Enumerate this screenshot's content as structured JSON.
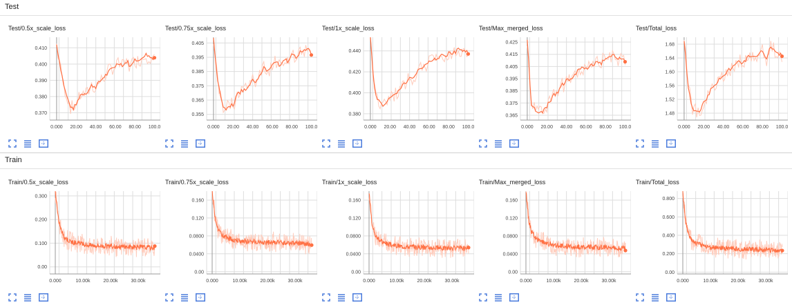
{
  "sections": [
    {
      "name": "Test"
    },
    {
      "name": "Train"
    }
  ],
  "colors": {
    "line": "#ff7043",
    "band": "#ffccbc",
    "grid": "#dddddd",
    "axis": "#999999",
    "icon": "#4a7bdc"
  },
  "icon_names": [
    "fit-to-page-icon",
    "toggle-y-log-icon",
    "fit-domain-icon"
  ],
  "charts": [
    {
      "section": 0,
      "title": "Test/0.5x_scale_loss",
      "chart_data": {
        "type": "line",
        "x": {
          "ticks": [
            "0.000",
            "20.00",
            "40.00",
            "60.00",
            "80.00",
            "100.0"
          ],
          "range": [
            -7,
            106
          ]
        },
        "y": {
          "ticks": [
            "0.370",
            "0.380",
            "0.390",
            "0.400",
            "0.410"
          ],
          "range": [
            0.3655,
            0.4165
          ]
        },
        "series": [
          {
            "x": [
              0,
              4,
              8,
              12,
              16,
              20,
              24,
              28,
              32,
              36,
              40,
              44,
              48,
              52,
              56,
              60,
              64,
              68,
              72,
              76,
              80,
              84,
              88,
              92,
              96,
              100
            ],
            "y": [
              0.412,
              0.398,
              0.385,
              0.377,
              0.372,
              0.375,
              0.381,
              0.382,
              0.383,
              0.387,
              0.386,
              0.389,
              0.392,
              0.394,
              0.397,
              0.399,
              0.401,
              0.399,
              0.402,
              0.398,
              0.404,
              0.401,
              0.405,
              0.406,
              0.404,
              0.404
            ]
          }
        ]
      }
    },
    {
      "section": 0,
      "title": "Test/0.75x_scale_loss",
      "chart_data": {
        "type": "line",
        "x": {
          "ticks": [
            "0.000",
            "20.00",
            "40.00",
            "60.00",
            "80.00",
            "100.0"
          ],
          "range": [
            -7,
            106
          ]
        },
        "y": {
          "ticks": [
            "0.355",
            "0.365",
            "0.375",
            "0.385",
            "0.395",
            "0.405"
          ],
          "range": [
            0.351,
            0.409
          ]
        },
        "series": [
          {
            "x": [
              0,
              4,
              8,
              12,
              16,
              20,
              24,
              28,
              32,
              36,
              40,
              44,
              48,
              52,
              56,
              60,
              64,
              68,
              72,
              76,
              80,
              84,
              88,
              92,
              96,
              100
            ],
            "y": [
              0.408,
              0.38,
              0.364,
              0.358,
              0.36,
              0.362,
              0.368,
              0.371,
              0.372,
              0.375,
              0.38,
              0.378,
              0.384,
              0.388,
              0.385,
              0.39,
              0.393,
              0.389,
              0.394,
              0.392,
              0.396,
              0.395,
              0.398,
              0.399,
              0.401,
              0.397
            ]
          }
        ]
      }
    },
    {
      "section": 0,
      "title": "Test/1x_scale_loss",
      "chart_data": {
        "type": "line",
        "x": {
          "ticks": [
            "0.000",
            "20.00",
            "40.00",
            "60.00",
            "80.00",
            "100.0"
          ],
          "range": [
            -7,
            106
          ]
        },
        "y": {
          "ticks": [
            "0.380",
            "0.400",
            "0.420",
            "0.440"
          ],
          "range": [
            0.374,
            0.453
          ]
        },
        "series": [
          {
            "x": [
              0,
              4,
              8,
              12,
              16,
              20,
              24,
              28,
              32,
              36,
              40,
              44,
              48,
              52,
              56,
              60,
              64,
              68,
              72,
              76,
              80,
              84,
              88,
              92,
              96,
              100
            ],
            "y": [
              0.452,
              0.405,
              0.392,
              0.388,
              0.39,
              0.395,
              0.398,
              0.402,
              0.405,
              0.41,
              0.414,
              0.416,
              0.42,
              0.424,
              0.426,
              0.43,
              0.432,
              0.433,
              0.436,
              0.435,
              0.438,
              0.437,
              0.44,
              0.442,
              0.44,
              0.438
            ]
          }
        ]
      }
    },
    {
      "section": 0,
      "title": "Test/Max_merged_loss",
      "chart_data": {
        "type": "line",
        "x": {
          "ticks": [
            "0.000",
            "20.00",
            "40.00",
            "60.00",
            "80.00",
            "100.0"
          ],
          "range": [
            -7,
            106
          ]
        },
        "y": {
          "ticks": [
            "0.365",
            "0.375",
            "0.385",
            "0.395",
            "0.405",
            "0.415",
            "0.425"
          ],
          "range": [
            0.361,
            0.429
          ]
        },
        "series": [
          {
            "x": [
              0,
              4,
              8,
              12,
              16,
              20,
              24,
              28,
              32,
              36,
              40,
              44,
              48,
              52,
              56,
              60,
              64,
              68,
              72,
              76,
              80,
              84,
              88,
              92,
              96,
              100
            ],
            "y": [
              0.428,
              0.375,
              0.37,
              0.365,
              0.368,
              0.372,
              0.378,
              0.382,
              0.385,
              0.39,
              0.393,
              0.395,
              0.398,
              0.401,
              0.404,
              0.403,
              0.406,
              0.407,
              0.409,
              0.408,
              0.411,
              0.412,
              0.414,
              0.413,
              0.41,
              0.41
            ]
          }
        ]
      }
    },
    {
      "section": 0,
      "title": "Test/Total_loss",
      "chart_data": {
        "type": "line",
        "x": {
          "ticks": [
            "0.000",
            "20.00",
            "40.00",
            "60.00",
            "80.00",
            "100.0"
          ],
          "range": [
            -7,
            106
          ]
        },
        "y": {
          "ticks": [
            "1.48",
            "1.52",
            "1.56",
            "1.60",
            "1.64",
            "1.68"
          ],
          "range": [
            1.46,
            1.7
          ]
        },
        "series": [
          {
            "x": [
              0,
              4,
              8,
              12,
              16,
              20,
              24,
              28,
              32,
              36,
              40,
              44,
              48,
              52,
              56,
              60,
              64,
              68,
              72,
              76,
              80,
              84,
              88,
              92,
              96,
              100
            ],
            "y": [
              1.69,
              1.56,
              1.5,
              1.48,
              1.49,
              1.51,
              1.53,
              1.55,
              1.56,
              1.58,
              1.59,
              1.6,
              1.61,
              1.62,
              1.63,
              1.62,
              1.64,
              1.65,
              1.64,
              1.65,
              1.66,
              1.64,
              1.67,
              1.66,
              1.65,
              1.65
            ]
          }
        ]
      }
    },
    {
      "section": 1,
      "title": "Train/0.5x_scale_loss",
      "chart_data": {
        "type": "line",
        "x": {
          "ticks": [
            "0.000",
            "10.00k",
            "20.00k",
            "30.00k"
          ],
          "range": [
            -2000,
            38000
          ]
        },
        "y": {
          "ticks": [
            "0.00",
            "0.100",
            "0.200",
            "0.300"
          ],
          "range": [
            -0.03,
            0.32
          ]
        },
        "series": [
          {
            "x": [
              0,
              1000,
              2000,
              3000,
              4000,
              5000,
              6000,
              8000,
              10000,
              12000,
              15000,
              18000,
              21000,
              24000,
              27000,
              30000,
              33000,
              36000
            ],
            "y": [
              0.32,
              0.21,
              0.16,
              0.13,
              0.12,
              0.11,
              0.105,
              0.1,
              0.095,
              0.092,
              0.09,
              0.088,
              0.086,
              0.085,
              0.084,
              0.083,
              0.082,
              0.08
            ]
          }
        ]
      }
    },
    {
      "section": 1,
      "title": "Train/0.75x_scale_loss",
      "chart_data": {
        "type": "line",
        "x": {
          "ticks": [
            "0.000",
            "10.00k",
            "20.00k",
            "30.00k"
          ],
          "range": [
            -2000,
            38000
          ]
        },
        "y": {
          "ticks": [
            "0.00",
            "0.0400",
            "0.0800",
            "0.120",
            "0.160"
          ],
          "range": [
            -0.005,
            0.18
          ]
        },
        "series": [
          {
            "x": [
              0,
              1000,
              2000,
              3000,
              4000,
              5000,
              6000,
              8000,
              10000,
              12000,
              15000,
              18000,
              21000,
              24000,
              27000,
              30000,
              33000,
              36000
            ],
            "y": [
              0.18,
              0.12,
              0.095,
              0.085,
              0.08,
              0.077,
              0.074,
              0.071,
              0.069,
              0.068,
              0.067,
              0.066,
              0.065,
              0.065,
              0.064,
              0.064,
              0.063,
              0.062
            ]
          }
        ]
      }
    },
    {
      "section": 1,
      "title": "Train/1x_scale_loss",
      "chart_data": {
        "type": "line",
        "x": {
          "ticks": [
            "0.000",
            "10.00k",
            "20.00k",
            "30.00k"
          ],
          "range": [
            -2000,
            38000
          ]
        },
        "y": {
          "ticks": [
            "0.00",
            "0.0400",
            "0.0800",
            "0.120",
            "0.160"
          ],
          "range": [
            -0.005,
            0.18
          ]
        },
        "series": [
          {
            "x": [
              0,
              1000,
              2000,
              3000,
              4000,
              5000,
              6000,
              8000,
              10000,
              12000,
              15000,
              18000,
              21000,
              24000,
              27000,
              30000,
              33000,
              36000
            ],
            "y": [
              0.18,
              0.11,
              0.085,
              0.075,
              0.07,
              0.066,
              0.063,
              0.06,
              0.058,
              0.057,
              0.056,
              0.055,
              0.054,
              0.054,
              0.053,
              0.053,
              0.052,
              0.052
            ]
          }
        ]
      }
    },
    {
      "section": 1,
      "title": "Train/Max_merged_loss",
      "chart_data": {
        "type": "line",
        "x": {
          "ticks": [
            "0.000",
            "10.00k",
            "20.00k",
            "30.00k"
          ],
          "range": [
            -2000,
            38000
          ]
        },
        "y": {
          "ticks": [
            "0.00",
            "0.0400",
            "0.0800",
            "0.120",
            "0.160"
          ],
          "range": [
            -0.005,
            0.18
          ]
        },
        "series": [
          {
            "x": [
              0,
              1000,
              2000,
              3000,
              4000,
              5000,
              6000,
              8000,
              10000,
              12000,
              15000,
              18000,
              21000,
              24000,
              27000,
              30000,
              33000,
              36000
            ],
            "y": [
              0.18,
              0.115,
              0.09,
              0.08,
              0.073,
              0.069,
              0.066,
              0.062,
              0.06,
              0.058,
              0.057,
              0.056,
              0.055,
              0.055,
              0.054,
              0.054,
              0.053,
              0.052
            ]
          }
        ]
      }
    },
    {
      "section": 1,
      "title": "Train/Total_loss",
      "chart_data": {
        "type": "line",
        "x": {
          "ticks": [
            "0.000",
            "10.00k",
            "20.00k",
            "30.00k"
          ],
          "range": [
            -2000,
            38000
          ]
        },
        "y": {
          "ticks": [
            "0.00",
            "0.200",
            "0.400",
            "0.600",
            "0.800"
          ],
          "range": [
            -0.02,
            0.88
          ]
        },
        "series": [
          {
            "x": [
              0,
              1000,
              2000,
              3000,
              4000,
              5000,
              6000,
              8000,
              10000,
              12000,
              15000,
              18000,
              21000,
              24000,
              27000,
              30000,
              33000,
              36000
            ],
            "y": [
              0.88,
              0.55,
              0.42,
              0.36,
              0.33,
              0.31,
              0.3,
              0.28,
              0.27,
              0.265,
              0.26,
              0.255,
              0.25,
              0.248,
              0.245,
              0.242,
              0.24,
              0.235
            ]
          }
        ]
      }
    }
  ]
}
